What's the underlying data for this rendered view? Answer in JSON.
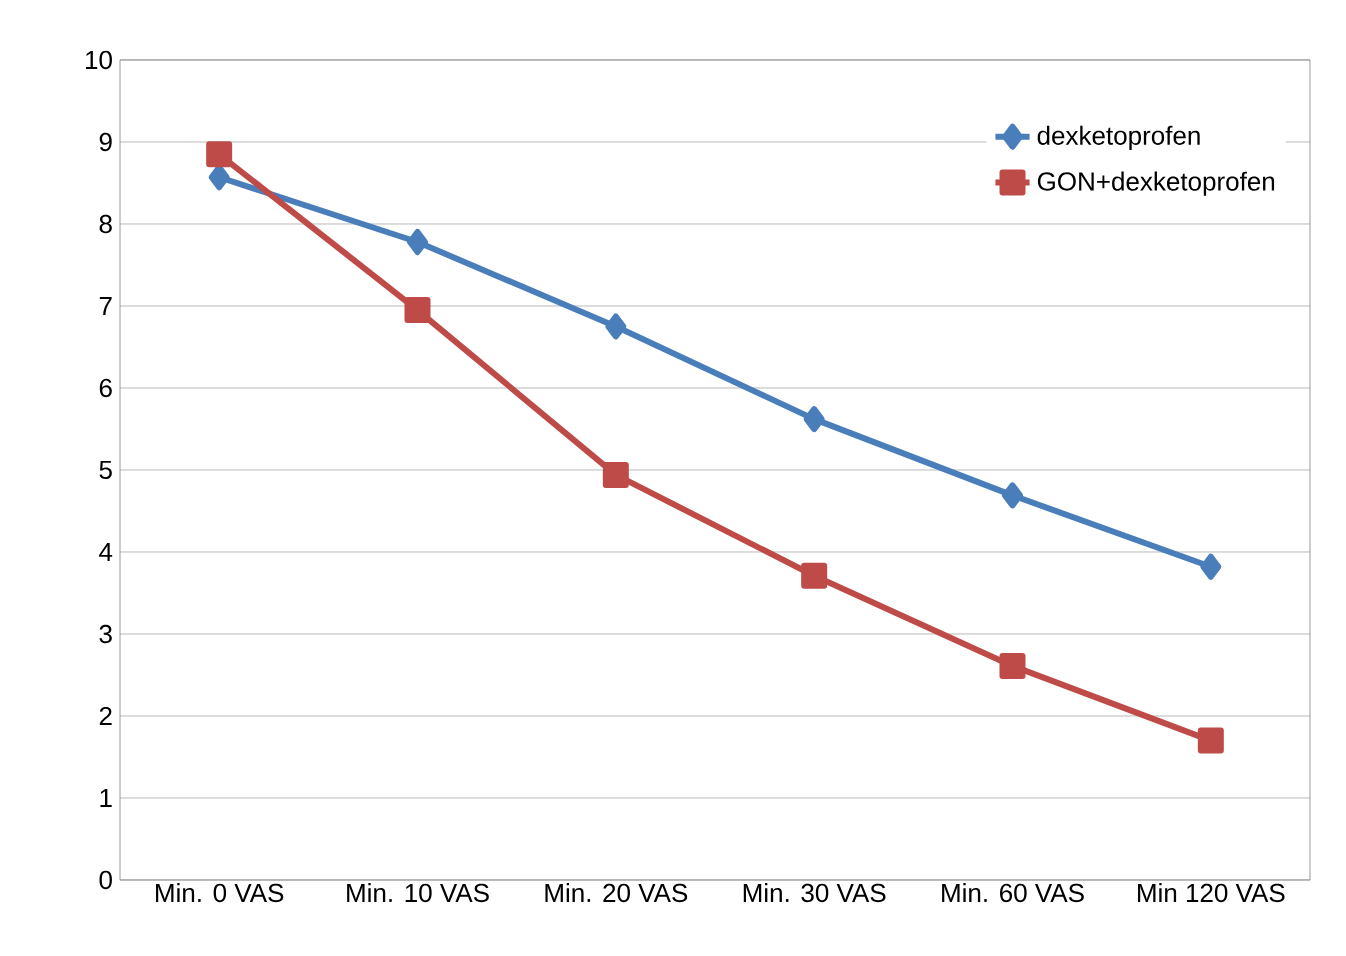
{
  "chart_data": {
    "type": "line",
    "categories": [
      "Min. 0 VAS",
      "Min. 10 VAS",
      "Min. 20 VAS",
      "Min. 30 VAS",
      "Min. 60 VAS",
      "Min 120 VAS"
    ],
    "series": [
      {
        "name": "dexketoprofen",
        "color": "#4a7ebb",
        "marker": "diamond",
        "values": [
          8.57,
          7.78,
          6.75,
          5.62,
          4.69,
          3.82
        ]
      },
      {
        "name": "GON+dexketoprofen",
        "color": "#be4b48",
        "marker": "square",
        "values": [
          8.85,
          6.95,
          4.94,
          3.71,
          2.61,
          1.7
        ]
      }
    ],
    "ylim": [
      0,
      10
    ],
    "yticks": [
      0,
      1,
      2,
      3,
      4,
      5,
      6,
      7,
      8,
      9,
      10
    ],
    "grid": "y",
    "legend": "top right",
    "line_style": "solid"
  }
}
